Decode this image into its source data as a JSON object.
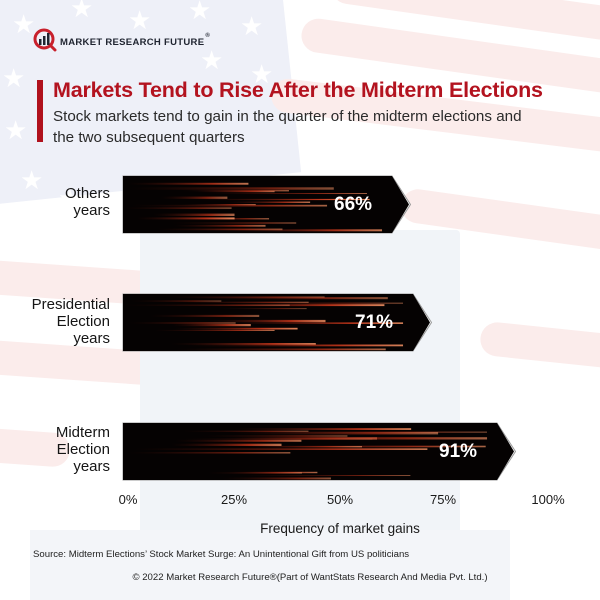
{
  "brand": {
    "name": "MARKET RESEARCH FUTURE",
    "registered": "®",
    "accent_color": "#b3131f"
  },
  "header": {
    "title": "Markets Tend to Rise After the Midterm Elections",
    "subtitle_line1": "Stock markets tend to gain in the quarter of the midterm elections and",
    "subtitle_line2": "the two subsequent quarters"
  },
  "bars": [
    {
      "label_lines": [
        "Others",
        "years"
      ],
      "value": 66,
      "value_label": "66%"
    },
    {
      "label_lines": [
        "Presidential",
        "Election",
        "years"
      ],
      "value": 71,
      "value_label": "71%"
    },
    {
      "label_lines": [
        "Midterm",
        "Election",
        "years"
      ],
      "value": 91,
      "value_label": "91%"
    }
  ],
  "axis": {
    "ticks": [
      "0%",
      "25%",
      "50%",
      "75%",
      "100%"
    ],
    "xlabel": "Frequency of market gains"
  },
  "footer": {
    "source": "Source: Midterm Elections’ Stock Market Surge: An Unintentional Gift from US politicians",
    "copyright": "© 2022 Market Research Future®(Part of WantStats Research And Media Pvt. Ltd.)"
  },
  "chart_data": {
    "type": "bar",
    "orientation": "horizontal",
    "title": "Markets Tend to Rise After the Midterm Elections",
    "subtitle": "Stock markets tend to gain in the quarter of the midterm elections and the two subsequent quarters",
    "categories": [
      "Others years",
      "Presidential Election years",
      "Midterm Election years"
    ],
    "values": [
      66,
      71,
      91
    ],
    "data_labels": [
      "66%",
      "71%",
      "91%"
    ],
    "xlabel": "Frequency of market gains",
    "ylabel": "",
    "xlim": [
      0,
      100
    ],
    "x_ticks": [
      "0%",
      "25%",
      "50%",
      "75%",
      "100%"
    ],
    "grid": false,
    "legend": null,
    "bar_color": "#000000",
    "bar_streak_color": "#c0351a"
  }
}
